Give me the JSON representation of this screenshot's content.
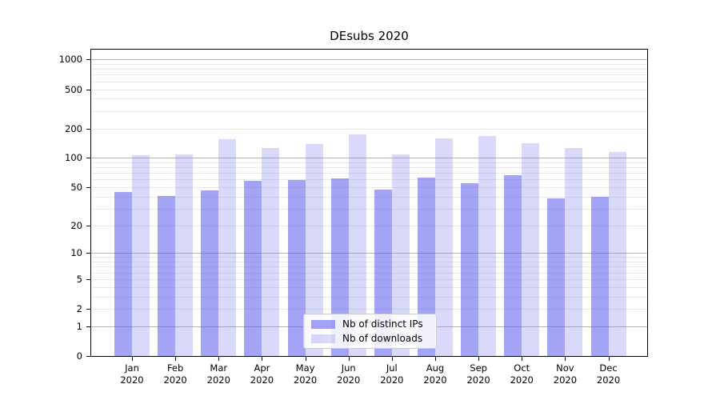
{
  "chart_data": {
    "type": "bar",
    "title": "DEsubs 2020",
    "categories": [
      "Jan",
      "Feb",
      "Mar",
      "Apr",
      "May",
      "Jun",
      "Jul",
      "Aug",
      "Sep",
      "Oct",
      "Nov",
      "Dec"
    ],
    "category_year": "2020",
    "series": [
      {
        "name": "Nb of distinct IPs",
        "color": "rgba(90,90,240,0.55)",
        "values": [
          45,
          41,
          46,
          58,
          59,
          62,
          47,
          63,
          55,
          67,
          38,
          40
        ]
      },
      {
        "name": "Nb of downloads",
        "color": "rgba(130,130,235,0.30)",
        "values": [
          106,
          108,
          154,
          127,
          140,
          175,
          109,
          158,
          168,
          142,
          127,
          114
        ]
      }
    ],
    "y_axis": {
      "ticks": [
        0,
        1,
        2,
        5,
        10,
        20,
        50,
        100,
        200,
        500,
        1000
      ],
      "scale": "log1p",
      "max": 1260
    },
    "grid": {
      "major_values": [
        1,
        10,
        100,
        1000
      ],
      "minor_base_values": [
        2,
        3,
        4,
        5,
        6,
        7,
        8,
        9
      ],
      "major_color": "#b3b3b3",
      "minor_color": "#e9e9e9"
    },
    "legend": {
      "position": "lower center"
    }
  }
}
